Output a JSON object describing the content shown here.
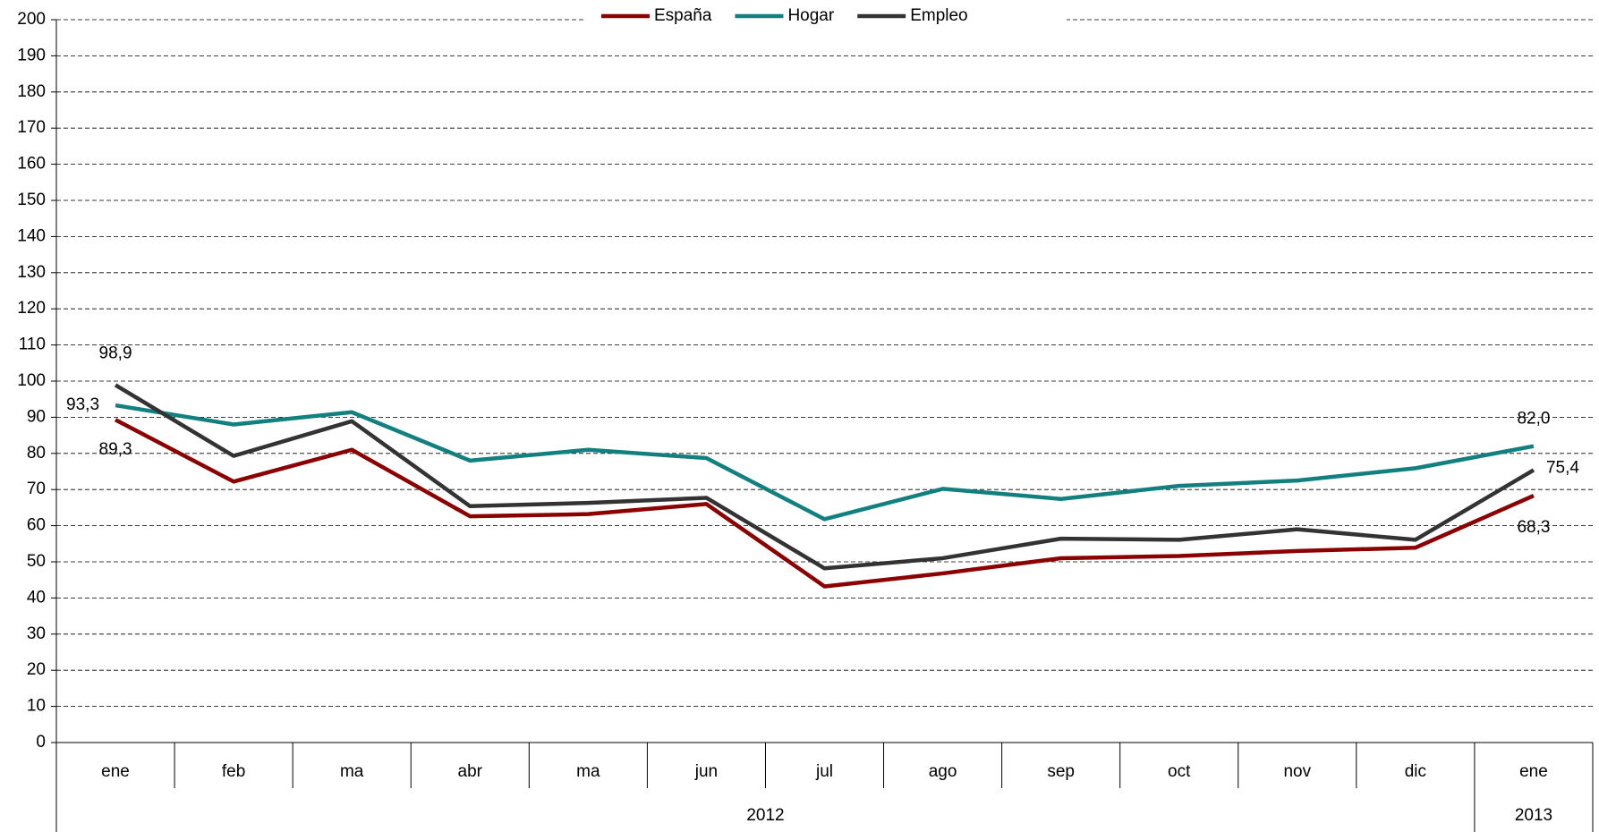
{
  "chart_data": {
    "type": "line",
    "category_groups": [
      {
        "name": "2012",
        "categories": [
          "ene",
          "feb",
          "ma",
          "abr",
          "ma",
          "jun",
          "jul",
          "ago",
          "sep",
          "oct",
          "nov",
          "dic"
        ]
      },
      {
        "name": "2013",
        "categories": [
          "ene"
        ]
      }
    ],
    "series": [
      {
        "name": "España",
        "color": "#8b0000",
        "values": [
          89.3,
          72.2,
          81.0,
          62.6,
          63.2,
          66.0,
          43.2,
          46.8,
          51.0,
          51.6,
          53.0,
          53.9,
          68.3
        ],
        "value_labels": [
          "89,3",
          null,
          null,
          null,
          null,
          null,
          null,
          null,
          null,
          null,
          null,
          null,
          "68,3"
        ]
      },
      {
        "name": "Hogar",
        "color": "#138080",
        "values": [
          93.3,
          88.0,
          91.4,
          78.0,
          81.0,
          78.7,
          61.8,
          70.2,
          67.4,
          71.0,
          72.5,
          75.9,
          82.0
        ],
        "value_labels": [
          "93,3",
          null,
          null,
          null,
          null,
          null,
          null,
          null,
          null,
          null,
          null,
          null,
          "82,0"
        ]
      },
      {
        "name": "Empleo",
        "color": "#333333",
        "values": [
          98.9,
          79.3,
          88.9,
          65.4,
          66.3,
          67.7,
          48.2,
          51.0,
          56.4,
          56.1,
          59.0,
          56.1,
          75.4
        ],
        "value_labels": [
          "98,9",
          null,
          null,
          null,
          null,
          null,
          null,
          null,
          null,
          null,
          null,
          null,
          "75,4"
        ]
      }
    ],
    "ylim": [
      0,
      200
    ],
    "yticks": [
      0,
      10,
      20,
      30,
      40,
      50,
      60,
      70,
      80,
      90,
      100,
      110,
      120,
      130,
      140,
      150,
      160,
      170,
      180,
      190,
      200
    ],
    "grid": true,
    "legend": "top"
  }
}
